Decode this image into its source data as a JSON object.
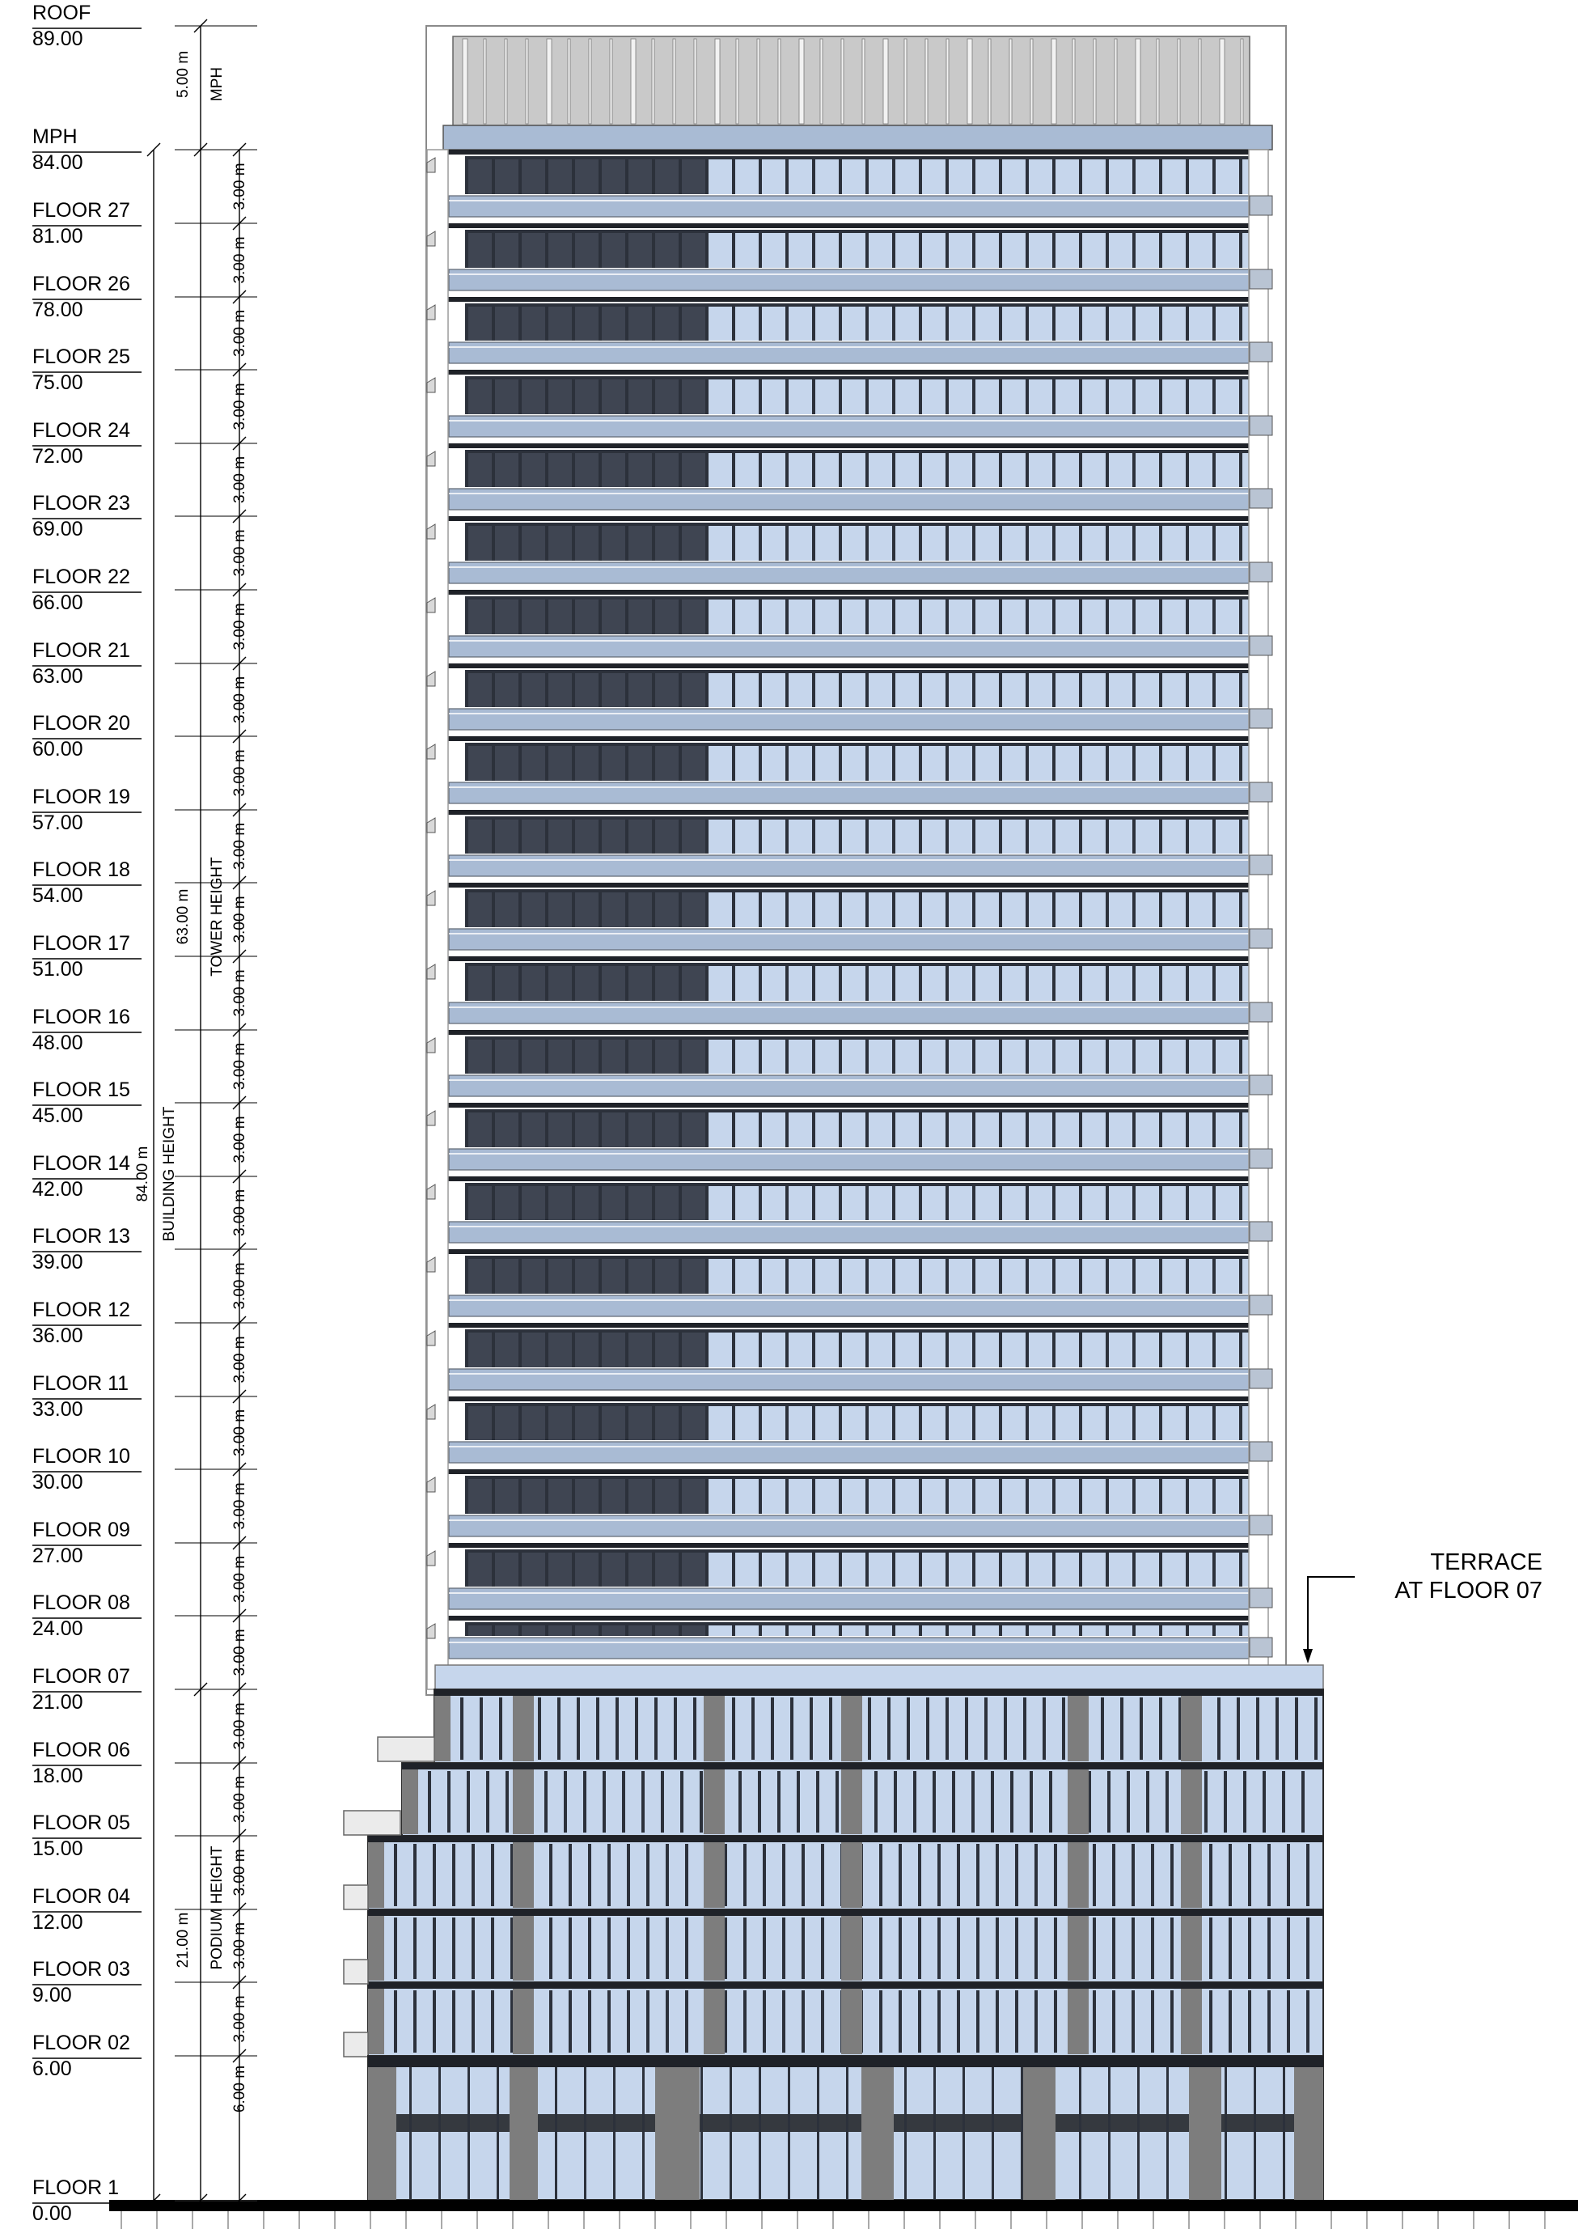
{
  "levels": [
    {
      "name": "ROOF",
      "elevation": "89.00"
    },
    {
      "name": "MPH",
      "elevation": "84.00"
    },
    {
      "name": "FLOOR 27",
      "elevation": "81.00"
    },
    {
      "name": "FLOOR 26",
      "elevation": "78.00"
    },
    {
      "name": "FLOOR 25",
      "elevation": "75.00"
    },
    {
      "name": "FLOOR 24",
      "elevation": "72.00"
    },
    {
      "name": "FLOOR 23",
      "elevation": "69.00"
    },
    {
      "name": "FLOOR 22",
      "elevation": "66.00"
    },
    {
      "name": "FLOOR 21",
      "elevation": "63.00"
    },
    {
      "name": "FLOOR 20",
      "elevation": "60.00"
    },
    {
      "name": "FLOOR 19",
      "elevation": "57.00"
    },
    {
      "name": "FLOOR 18",
      "elevation": "54.00"
    },
    {
      "name": "FLOOR 17",
      "elevation": "51.00"
    },
    {
      "name": "FLOOR 16",
      "elevation": "48.00"
    },
    {
      "name": "FLOOR 15",
      "elevation": "45.00"
    },
    {
      "name": "FLOOR 14",
      "elevation": "42.00"
    },
    {
      "name": "FLOOR 13",
      "elevation": "39.00"
    },
    {
      "name": "FLOOR 12",
      "elevation": "36.00"
    },
    {
      "name": "FLOOR 11",
      "elevation": "33.00"
    },
    {
      "name": "FLOOR 10",
      "elevation": "30.00"
    },
    {
      "name": "FLOOR 09",
      "elevation": "27.00"
    },
    {
      "name": "FLOOR 08",
      "elevation": "24.00"
    },
    {
      "name": "FLOOR 07",
      "elevation": "21.00"
    },
    {
      "name": "FLOOR 06",
      "elevation": "18.00"
    },
    {
      "name": "FLOOR 05",
      "elevation": "15.00"
    },
    {
      "name": "FLOOR 04",
      "elevation": "12.00"
    },
    {
      "name": "FLOOR 03",
      "elevation": "9.00"
    },
    {
      "name": "FLOOR 02",
      "elevation": "6.00"
    },
    {
      "name": "FLOOR 1",
      "elevation": "0.00"
    }
  ],
  "dimensions": {
    "mph": {
      "value": "5.00 m",
      "label": "MPH"
    },
    "floor_to_floor": "3.00 m",
    "ground_floor": "6.00 m",
    "tower": {
      "value": "63.00 m",
      "label": "TOWER HEIGHT"
    },
    "building": {
      "value": "84.00 m",
      "label": "BUILDING HEIGHT"
    },
    "podium": {
      "value": "21.00 m",
      "label": "PODIUM HEIGHT"
    }
  },
  "annotation": {
    "line1": "TERRACE",
    "line2": "AT FLOOR 07"
  },
  "colors": {
    "glass_light": "#c6d6ec",
    "glass_mid": "#a9bbd4",
    "glass_dark": "#3f4552",
    "mullion": "#2c313b",
    "slab": "#1f2228",
    "concrete": "#ebebeb",
    "podium_pier": "#7d7d7d",
    "mechanical": "#c9c9c9"
  }
}
